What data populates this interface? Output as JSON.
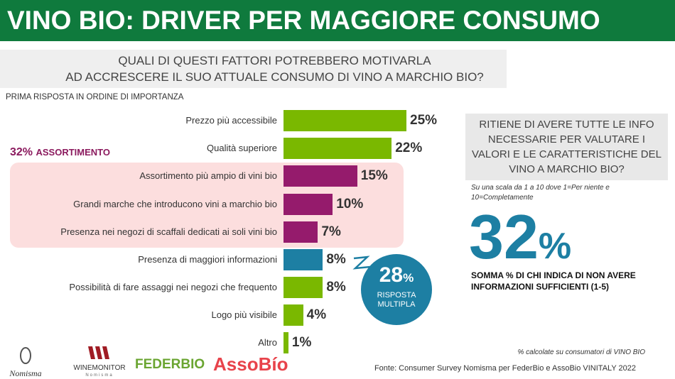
{
  "header": {
    "title": "VINO BIO: DRIVER PER MAGGIORE CONSUMO"
  },
  "question": {
    "line1": "QUALI DI QUESTI FATTORI POTREBBERO MOTIVARLA",
    "line2": "AD ACCRESCERE IL SUO ATTUALE CONSUMO DI VINO A MARCHIO BIO?"
  },
  "subtitle": "PRIMA RISPOSTA IN ORDINE DI IMPORTANZA",
  "assortimento": {
    "value": "32%",
    "label": "ASSORTIMENTO"
  },
  "chart_data": {
    "type": "bar",
    "orientation": "horizontal",
    "unit": "%",
    "xlim": [
      0,
      25
    ],
    "categories": [
      "Prezzo più accessibile",
      "Qualità superiore",
      "Assortimento più ampio di vini bio",
      "Grandi marche che introducono vini a marchio bio",
      "Presenza nei negozi di scaffali dedicati ai soli vini bio",
      "Presenza di maggiori informazioni",
      "Possibilità di fare assaggi nei negozi che frequento",
      "Logo più visibile",
      "Altro"
    ],
    "values": [
      25,
      22,
      15,
      10,
      7,
      8,
      8,
      4,
      1
    ],
    "labels": [
      "25%",
      "22%",
      "15%",
      "10%",
      "7%",
      "8%",
      "8%",
      "4%",
      "1%"
    ],
    "colors": [
      "#7ab800",
      "#7ab800",
      "#951b6c",
      "#951b6c",
      "#951b6c",
      "#1d7fa3",
      "#7ab800",
      "#7ab800",
      "#7ab800"
    ]
  },
  "bubble": {
    "value": "28",
    "pct": "%",
    "line1": "RISPOSTA",
    "line2": "MULTIPLA"
  },
  "right": {
    "question": "RITIENE DI AVERE TUTTE LE INFO NECESSARIE PER VALUTARE I VALORI E LE CARATTERISTICHE DEL VINO A MARCHIO BIO?",
    "scale": "Su una scala da 1 a 10 dove 1=Per niente e 10=Completamente",
    "value": "32",
    "pct": "%",
    "desc1": "SOMMA % DI CHI INDICA DI NON AVERE",
    "desc2": "INFORMAZIONI SUFFICIENTI (1-5)"
  },
  "footer": {
    "note": "% calcolate  su consumatori di VINO BIO",
    "source": "Fonte: Consumer Survey Nomisma per FederBio e AssoBio VINITALY 2022"
  },
  "logos": {
    "nomisma": "Nomisma",
    "winemonitor": "WINEMONITOR",
    "winemonitor_sub": "Nomisma",
    "federbio": "FEDERBIO",
    "assobio": "AssoBío"
  }
}
